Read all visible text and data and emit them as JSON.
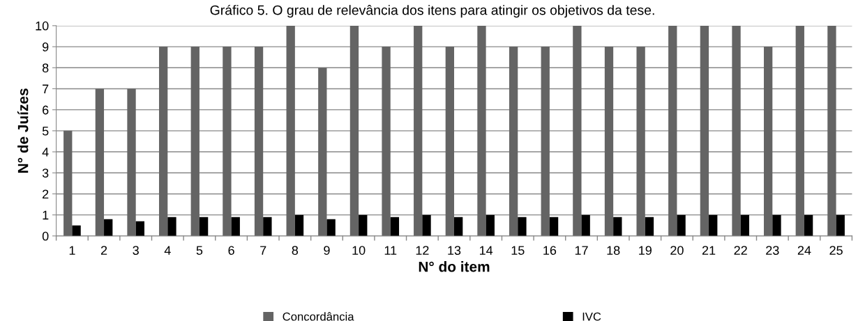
{
  "chart_data": {
    "type": "bar",
    "title": "Gráfico 5. O grau de relevância dos itens para atingir os objetivos da tese.",
    "xlabel": "N° do item",
    "ylabel": "N° de Juízes",
    "categories": [
      "1",
      "2",
      "3",
      "4",
      "5",
      "6",
      "7",
      "8",
      "9",
      "10",
      "11",
      "12",
      "13",
      "14",
      "15",
      "16",
      "17",
      "18",
      "19",
      "20",
      "21",
      "22",
      "23",
      "24",
      "25"
    ],
    "series": [
      {
        "name": "Concordância",
        "color": "#646464",
        "values": [
          5,
          7,
          7,
          9,
          9,
          9,
          9,
          10,
          8,
          10,
          9,
          10,
          9,
          10,
          9,
          9,
          10,
          9,
          9,
          10,
          10,
          10,
          9,
          10,
          10
        ]
      },
      {
        "name": "IVC",
        "color": "#000000",
        "values": [
          0.5,
          0.8,
          0.7,
          0.9,
          0.9,
          0.9,
          0.9,
          1,
          0.8,
          1,
          0.9,
          1,
          0.9,
          1,
          0.9,
          0.9,
          1,
          0.9,
          0.9,
          1,
          1,
          1,
          1,
          1,
          1
        ]
      }
    ],
    "ylim": [
      0,
      10
    ],
    "yticks": [
      0,
      1,
      2,
      3,
      4,
      5,
      6,
      7,
      8,
      9,
      10
    ],
    "grid": "y",
    "legend": "bottom"
  }
}
